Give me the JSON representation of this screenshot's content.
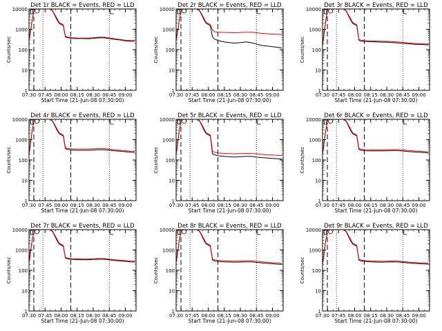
{
  "figure": {
    "xlabel": "Start Time (21-Jun-08 07:30:00)",
    "ylabel": "Counts/sec",
    "x_tick_labels": [
      "07:30",
      "07:45",
      "08:00",
      "08:15",
      "08:30",
      "08:45",
      "09:00"
    ],
    "y_tick_labels": [
      "1",
      "10",
      "100",
      "1000",
      "10000"
    ]
  },
  "colors": {
    "events": "#000000",
    "lld": "#ff0000"
  },
  "chart_data": [
    {
      "type": "line",
      "title": "Det 1r BLACK = Events, RED = LLD",
      "x_unit": "minutes",
      "xlim": [
        0,
        100
      ],
      "ylim": [
        1,
        10000
      ],
      "y_scale": "log",
      "x": [
        0,
        1,
        2,
        3,
        5,
        7,
        9,
        12,
        15,
        18,
        20,
        22,
        24,
        26,
        28,
        32,
        34,
        36,
        40,
        45,
        50,
        55,
        60,
        65,
        70,
        75,
        80,
        85,
        90,
        95,
        99
      ],
      "series": [
        {
          "name": "Events",
          "color": "#000000",
          "values": [
            300,
            600,
            1200,
            3000,
            10000,
            10000,
            10000,
            10000,
            10000,
            10000,
            10000,
            8000,
            5000,
            3000,
            2000,
            1500,
            420,
            390,
            360,
            350,
            350,
            345,
            360,
            380,
            380,
            350,
            320,
            300,
            270,
            260,
            260
          ]
        },
        {
          "name": "LLD",
          "color": "#ff0000",
          "values": [
            320,
            650,
            1300,
            3200,
            10000,
            10000,
            10000,
            10000,
            10000,
            10000,
            10000,
            8500,
            5500,
            3500,
            2200,
            1700,
            460,
            420,
            390,
            375,
            370,
            370,
            390,
            410,
            410,
            380,
            345,
            320,
            290,
            280,
            275
          ]
        }
      ],
      "markers": {
        "dashed": [
          4.5,
          39
        ],
        "dotted": [
          13,
          75
        ]
      }
    },
    {
      "type": "line",
      "title": "Det 2r BLACK = Events, RED = LLD",
      "x_unit": "minutes",
      "xlim": [
        0,
        100
      ],
      "ylim": [
        1,
        10000
      ],
      "y_scale": "log",
      "x": [
        0,
        1,
        2,
        3,
        5,
        7,
        9,
        12,
        15,
        18,
        20,
        22,
        24,
        26,
        28,
        32,
        34,
        36,
        40,
        45,
        50,
        55,
        60,
        65,
        70,
        75,
        80,
        85,
        90,
        95,
        99
      ],
      "series": [
        {
          "name": "Events",
          "color": "#000000",
          "values": [
            300,
            600,
            1200,
            3000,
            10000,
            10000,
            10000,
            10000,
            10000,
            10000,
            10000,
            8000,
            5000,
            3000,
            2000,
            1500,
            420,
            330,
            270,
            240,
            220,
            210,
            220,
            240,
            220,
            190,
            160,
            150,
            140,
            130,
            120
          ]
        },
        {
          "name": "LLD",
          "color": "#ff0000",
          "values": [
            320,
            650,
            1300,
            3200,
            10000,
            10000,
            10000,
            10000,
            10000,
            10000,
            10000,
            8500,
            5500,
            3500,
            2200,
            1700,
            950,
            760,
            720,
            700,
            680,
            670,
            700,
            720,
            720,
            680,
            630,
            600,
            580,
            560,
            560
          ]
        }
      ],
      "markers": {
        "dashed": [
          4.5,
          39
        ],
        "dotted": [
          13,
          75
        ]
      }
    },
    {
      "type": "line",
      "title": "Det 3r BLACK = Events, RED = LLD",
      "x_unit": "minutes",
      "xlim": [
        0,
        100
      ],
      "ylim": [
        1,
        10000
      ],
      "y_scale": "log",
      "x": [
        0,
        1,
        2,
        3,
        5,
        7,
        9,
        12,
        15,
        18,
        20,
        22,
        24,
        26,
        28,
        32,
        34,
        36,
        40,
        45,
        50,
        55,
        60,
        65,
        70,
        75,
        80,
        85,
        90,
        95,
        99
      ],
      "series": [
        {
          "name": "Events",
          "color": "#000000",
          "values": [
            150,
            400,
            1000,
            2500,
            10000,
            10000,
            10000,
            10000,
            10000,
            10000,
            10000,
            8000,
            5000,
            3000,
            2000,
            1500,
            290,
            260,
            250,
            245,
            240,
            235,
            235,
            225,
            215,
            205,
            195,
            185,
            180,
            175,
            170
          ]
        },
        {
          "name": "LLD",
          "color": "#ff0000",
          "values": [
            170,
            450,
            1100,
            2800,
            10000,
            10000,
            10000,
            10000,
            10000,
            10000,
            10000,
            8500,
            5500,
            3500,
            2200,
            1700,
            320,
            290,
            280,
            270,
            265,
            260,
            258,
            250,
            240,
            228,
            215,
            205,
            198,
            192,
            188
          ]
        }
      ],
      "markers": {
        "dashed": [
          4.5,
          39
        ],
        "dotted": [
          13,
          75
        ]
      }
    },
    {
      "type": "line",
      "title": "Det 4r BLACK = Events, RED = LLD",
      "x_unit": "minutes",
      "xlim": [
        0,
        100
      ],
      "ylim": [
        1,
        10000
      ],
      "y_scale": "log",
      "x": [
        0,
        1,
        2,
        3,
        5,
        7,
        9,
        12,
        15,
        18,
        20,
        22,
        24,
        26,
        28,
        32,
        34,
        36,
        40,
        45,
        50,
        55,
        60,
        65,
        70,
        75,
        80,
        85,
        90,
        95,
        99
      ],
      "series": [
        {
          "name": "Events",
          "color": "#000000",
          "values": [
            200,
            450,
            1100,
            2800,
            10000,
            10000,
            10000,
            10000,
            10000,
            10000,
            10000,
            8000,
            5000,
            3000,
            2000,
            1500,
            360,
            330,
            310,
            300,
            300,
            300,
            310,
            320,
            320,
            300,
            280,
            270,
            255,
            240,
            235
          ]
        },
        {
          "name": "LLD",
          "color": "#ff0000",
          "values": [
            220,
            500,
            1200,
            3000,
            10000,
            10000,
            10000,
            10000,
            10000,
            10000,
            10000,
            8500,
            5500,
            3500,
            2200,
            1700,
            400,
            370,
            350,
            345,
            345,
            345,
            355,
            365,
            365,
            340,
            315,
            300,
            285,
            270,
            265
          ]
        }
      ],
      "markers": {
        "dashed": [
          4.5,
          39
        ],
        "dotted": [
          13,
          75
        ]
      }
    },
    {
      "type": "line",
      "title": "Det 5r BLACK = Events, RED = LLD",
      "x_unit": "minutes",
      "xlim": [
        0,
        100
      ],
      "ylim": [
        1,
        10000
      ],
      "y_scale": "log",
      "x": [
        0,
        1,
        2,
        3,
        5,
        7,
        9,
        12,
        15,
        18,
        20,
        22,
        24,
        26,
        28,
        32,
        34,
        36,
        40,
        45,
        50,
        55,
        60,
        65,
        70,
        75,
        80,
        85,
        90,
        95,
        99
      ],
      "series": [
        {
          "name": "Events",
          "color": "#000000",
          "values": [
            200,
            450,
            1100,
            2800,
            10000,
            10000,
            10000,
            10000,
            10000,
            10000,
            10000,
            8000,
            5000,
            3000,
            2000,
            1500,
            200,
            180,
            160,
            150,
            145,
            140,
            145,
            150,
            150,
            140,
            130,
            125,
            120,
            115,
            110
          ]
        },
        {
          "name": "LLD",
          "color": "#ff0000",
          "values": [
            220,
            500,
            1200,
            3000,
            10000,
            10000,
            10000,
            10000,
            10000,
            10000,
            10000,
            8500,
            5500,
            3500,
            2200,
            1700,
            270,
            240,
            220,
            210,
            205,
            200,
            205,
            210,
            210,
            200,
            190,
            180,
            175,
            170,
            165
          ]
        }
      ],
      "markers": {
        "dashed": [
          4.5,
          39
        ],
        "dotted": [
          13,
          75
        ]
      }
    },
    {
      "type": "line",
      "title": "Det 6r BLACK = Events, RED = LLD",
      "x_unit": "minutes",
      "xlim": [
        0,
        100
      ],
      "ylim": [
        1,
        10000
      ],
      "y_scale": "log",
      "x": [
        0,
        1,
        2,
        3,
        5,
        7,
        9,
        12,
        15,
        18,
        20,
        22,
        24,
        26,
        28,
        32,
        34,
        36,
        40,
        45,
        50,
        55,
        60,
        65,
        70,
        75,
        80,
        85,
        90,
        95,
        99
      ],
      "series": [
        {
          "name": "Events",
          "color": "#000000",
          "values": [
            200,
            450,
            1100,
            2800,
            10000,
            10000,
            10000,
            10000,
            10000,
            10000,
            10000,
            8000,
            5000,
            3000,
            2000,
            1500,
            330,
            300,
            285,
            280,
            280,
            280,
            285,
            290,
            290,
            275,
            260,
            250,
            240,
            230,
            225
          ]
        },
        {
          "name": "LLD",
          "color": "#ff0000",
          "values": [
            220,
            500,
            1200,
            3000,
            10000,
            10000,
            10000,
            10000,
            10000,
            10000,
            10000,
            8500,
            5500,
            3500,
            2200,
            1700,
            370,
            340,
            320,
            315,
            315,
            315,
            322,
            330,
            330,
            312,
            295,
            283,
            272,
            262,
            256
          ]
        }
      ],
      "markers": {
        "dashed": [
          4.5,
          39
        ],
        "dotted": [
          13,
          75
        ]
      }
    },
    {
      "type": "line",
      "title": "Det 7r BLACK = Events, RED = LLD",
      "x_unit": "minutes",
      "xlim": [
        0,
        100
      ],
      "ylim": [
        1,
        10000
      ],
      "y_scale": "log",
      "x": [
        0,
        1,
        2,
        3,
        5,
        7,
        9,
        12,
        15,
        18,
        20,
        22,
        24,
        26,
        28,
        32,
        34,
        36,
        40,
        45,
        50,
        55,
        60,
        65,
        70,
        75,
        80,
        85,
        90,
        95,
        99
      ],
      "series": [
        {
          "name": "Events",
          "color": "#000000",
          "values": [
            250,
            550,
            1200,
            3000,
            10000,
            10000,
            10000,
            10000,
            10000,
            10000,
            10000,
            8000,
            5000,
            3000,
            2000,
            1500,
            400,
            370,
            345,
            335,
            330,
            330,
            340,
            350,
            350,
            330,
            305,
            290,
            275,
            260,
            255
          ]
        },
        {
          "name": "LLD",
          "color": "#ff0000",
          "values": [
            270,
            600,
            1300,
            3200,
            10000,
            10000,
            10000,
            10000,
            10000,
            10000,
            10000,
            8500,
            5500,
            3500,
            2200,
            1700,
            430,
            400,
            375,
            365,
            360,
            360,
            370,
            380,
            380,
            358,
            332,
            315,
            300,
            284,
            278
          ]
        }
      ],
      "markers": {
        "dashed": [
          4.5,
          39
        ],
        "dotted": [
          13,
          75
        ]
      }
    },
    {
      "type": "line",
      "title": "Det 8r BLACK = Events, RED = LLD",
      "x_unit": "minutes",
      "xlim": [
        0,
        100
      ],
      "ylim": [
        1,
        10000
      ],
      "y_scale": "log",
      "x": [
        0,
        1,
        2,
        3,
        5,
        7,
        9,
        12,
        15,
        18,
        20,
        22,
        24,
        26,
        28,
        32,
        34,
        36,
        40,
        45,
        50,
        55,
        60,
        65,
        70,
        75,
        80,
        85,
        90,
        95,
        99
      ],
      "series": [
        {
          "name": "Events",
          "color": "#000000",
          "values": [
            250,
            550,
            1200,
            3000,
            10000,
            10000,
            10000,
            10000,
            10000,
            10000,
            10000,
            8000,
            5000,
            3000,
            2000,
            1500,
            320,
            290,
            270,
            260,
            255,
            250,
            255,
            260,
            260,
            245,
            230,
            220,
            210,
            200,
            195
          ]
        },
        {
          "name": "LLD",
          "color": "#ff0000",
          "values": [
            270,
            600,
            1300,
            3200,
            10000,
            10000,
            10000,
            10000,
            10000,
            10000,
            10000,
            8500,
            5500,
            3500,
            2200,
            1700,
            360,
            330,
            305,
            295,
            290,
            285,
            290,
            296,
            296,
            280,
            262,
            250,
            238,
            228,
            222
          ]
        }
      ],
      "markers": {
        "dashed": [
          4.5,
          39
        ],
        "dotted": [
          13,
          75
        ]
      }
    },
    {
      "type": "line",
      "title": "Det 9r BLACK = Events, RED = LLD",
      "x_unit": "minutes",
      "xlim": [
        0,
        100
      ],
      "ylim": [
        1,
        10000
      ],
      "y_scale": "log",
      "x": [
        0,
        1,
        2,
        3,
        5,
        7,
        9,
        12,
        15,
        18,
        20,
        22,
        24,
        26,
        28,
        32,
        34,
        36,
        40,
        45,
        50,
        55,
        60,
        65,
        70,
        75,
        80,
        85,
        90,
        95,
        99
      ],
      "series": [
        {
          "name": "Events",
          "color": "#000000",
          "values": [
            200,
            450,
            1100,
            2800,
            10000,
            10000,
            10000,
            10000,
            10000,
            10000,
            10000,
            8000,
            5000,
            3000,
            2000,
            1500,
            320,
            290,
            270,
            260,
            255,
            250,
            255,
            260,
            258,
            245,
            230,
            220,
            212,
            205,
            200
          ]
        },
        {
          "name": "LLD",
          "color": "#ff0000",
          "values": [
            220,
            500,
            1200,
            3000,
            10000,
            10000,
            10000,
            10000,
            10000,
            10000,
            10000,
            8500,
            5500,
            3500,
            2200,
            1700,
            350,
            320,
            300,
            290,
            285,
            280,
            285,
            290,
            288,
            272,
            256,
            245,
            236,
            228,
            222
          ]
        }
      ],
      "markers": {
        "dashed": [
          4.5,
          39
        ],
        "dotted": [
          13,
          75
        ]
      }
    }
  ]
}
